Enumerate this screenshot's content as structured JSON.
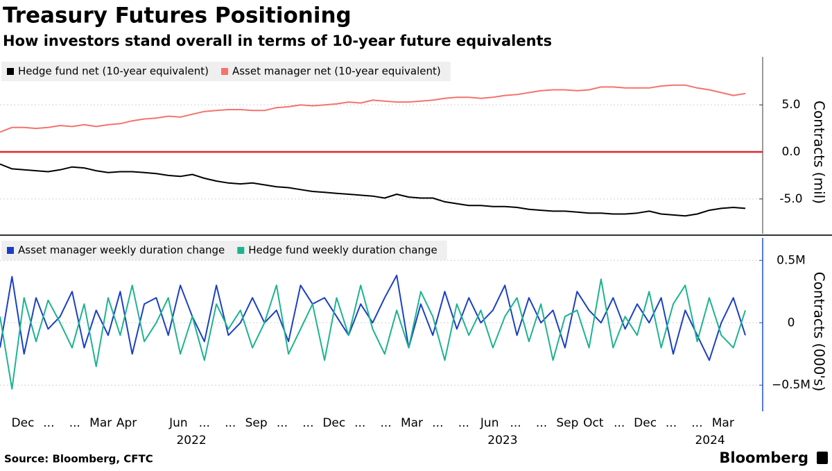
{
  "title": "Treasury Futures Positioning",
  "subtitle": "How investors stand overall in terms of 10-year future equivalents",
  "source": "Source: Bloomberg, CFTC",
  "logo": "Bloomberg",
  "x_axis": {
    "labels": [
      "Dec",
      "...",
      "...",
      "Mar",
      "Apr",
      null,
      "Jun",
      "...",
      "...",
      "Sep",
      "...",
      "...",
      "Dec",
      "...",
      "...",
      "Mar",
      "...",
      "...",
      "Jun",
      "...",
      "...",
      "Sep",
      "Oct",
      "...",
      "Dec",
      "...",
      "...",
      "Mar"
    ],
    "years": [
      "2022",
      "2023",
      "2024"
    ]
  },
  "chart_data": [
    {
      "type": "line",
      "ylabel": "Contracts (mil)",
      "ylim": [
        -8.7,
        10.1
      ],
      "yticks": [
        {
          "value": 5,
          "label": "5.0"
        },
        {
          "value": 0,
          "label": "0.0"
        },
        {
          "value": -5,
          "label": "-5.0"
        }
      ],
      "grid": true,
      "zero_line": "#e3242b",
      "axis_color": "#333333",
      "series": [
        {
          "name": "Hedge fund net (10-year equivalent)",
          "color": "#000000",
          "values": [
            -1.3,
            -1.8,
            -1.9,
            -2.0,
            -2.1,
            -1.9,
            -1.6,
            -1.7,
            -2.0,
            -2.2,
            -2.1,
            -2.1,
            -2.2,
            -2.3,
            -2.5,
            -2.6,
            -2.4,
            -2.8,
            -3.1,
            -3.3,
            -3.4,
            -3.3,
            -3.5,
            -3.7,
            -3.8,
            -4.0,
            -4.2,
            -4.3,
            -4.4,
            -4.5,
            -4.6,
            -4.7,
            -4.9,
            -4.5,
            -4.8,
            -4.9,
            -4.9,
            -5.3,
            -5.5,
            -5.7,
            -5.7,
            -5.8,
            -5.8,
            -5.9,
            -6.1,
            -6.2,
            -6.3,
            -6.3,
            -6.4,
            -6.5,
            -6.5,
            -6.6,
            -6.6,
            -6.5,
            -6.3,
            -6.6,
            -6.7,
            -6.8,
            -6.6,
            -6.2,
            -6.0,
            -5.9,
            -6.0
          ]
        },
        {
          "name": "Asset manager net (10-year equivalent)",
          "color": "#f4736b",
          "values": [
            2.1,
            2.6,
            2.6,
            2.5,
            2.6,
            2.8,
            2.7,
            2.9,
            2.7,
            2.9,
            3.0,
            3.3,
            3.5,
            3.6,
            3.8,
            3.7,
            4.0,
            4.3,
            4.4,
            4.5,
            4.5,
            4.4,
            4.4,
            4.7,
            4.8,
            5.0,
            4.9,
            5.0,
            5.1,
            5.3,
            5.2,
            5.5,
            5.4,
            5.3,
            5.3,
            5.4,
            5.5,
            5.7,
            5.8,
            5.8,
            5.7,
            5.8,
            6.0,
            6.1,
            6.3,
            6.5,
            6.6,
            6.6,
            6.5,
            6.6,
            6.9,
            6.9,
            6.8,
            6.8,
            6.8,
            7.0,
            7.1,
            7.1,
            6.8,
            6.6,
            6.3,
            6.0,
            6.2
          ]
        }
      ]
    },
    {
      "type": "line",
      "ylabel": "Contracts (000's)",
      "ylim": [
        -0.71,
        0.68
      ],
      "yticks": [
        {
          "value": 0.5,
          "label": "0.5M"
        },
        0,
        {
          "value": -0.5,
          "label": "−0.5M"
        }
      ],
      "grid": true,
      "axis_color": "#1f4fd1",
      "series": [
        {
          "name": "Asset manager weekly duration change",
          "color": "#1a3fc4",
          "values": [
            -0.2,
            0.37,
            -0.25,
            0.2,
            -0.05,
            0.05,
            0.25,
            -0.2,
            0.1,
            -0.1,
            0.25,
            -0.25,
            0.15,
            0.2,
            -0.1,
            0.3,
            0.05,
            -0.15,
            0.3,
            -0.1,
            0.0,
            0.2,
            0.0,
            0.1,
            -0.15,
            0.3,
            0.15,
            0.2,
            0.05,
            -0.1,
            0.15,
            0.0,
            0.2,
            0.38,
            -0.2,
            0.15,
            -0.1,
            0.25,
            -0.05,
            0.2,
            0.0,
            0.1,
            0.3,
            -0.1,
            0.2,
            0.0,
            0.1,
            -0.2,
            0.25,
            0.1,
            0.0,
            0.2,
            -0.05,
            0.15,
            0.0,
            0.2,
            -0.25,
            0.1,
            -0.1,
            -0.3,
            0.0,
            0.2,
            -0.1
          ]
        },
        {
          "name": "Hedge fund weekly duration change",
          "color": "#1db38f",
          "values": [
            0.05,
            -0.53,
            0.2,
            -0.15,
            0.18,
            0.0,
            -0.2,
            0.15,
            -0.35,
            0.2,
            -0.1,
            0.3,
            -0.15,
            0.0,
            0.2,
            -0.25,
            0.05,
            -0.3,
            0.15,
            -0.05,
            0.1,
            -0.2,
            0.0,
            0.3,
            -0.25,
            -0.05,
            0.15,
            -0.3,
            0.2,
            -0.1,
            0.3,
            -0.05,
            -0.25,
            0.1,
            -0.2,
            0.25,
            0.05,
            -0.3,
            0.15,
            -0.1,
            0.1,
            -0.2,
            0.05,
            0.2,
            -0.15,
            0.15,
            -0.3,
            0.05,
            0.1,
            -0.2,
            0.35,
            -0.2,
            0.05,
            -0.1,
            0.25,
            -0.2,
            0.15,
            0.3,
            -0.15,
            0.2,
            -0.1,
            -0.2,
            0.1
          ]
        }
      ]
    }
  ]
}
